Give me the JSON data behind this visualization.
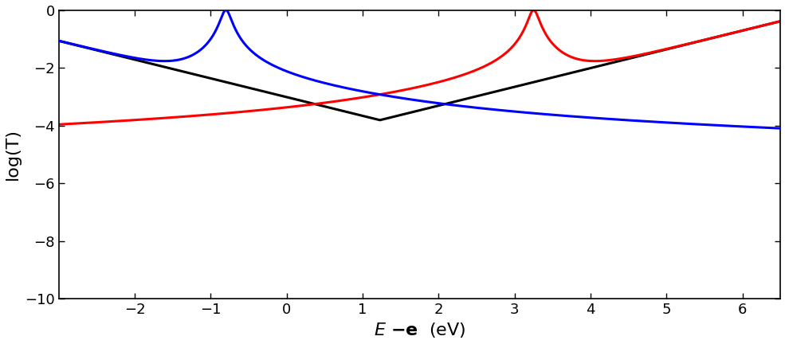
{
  "xlabel": "E -e  (eV)",
  "ylabel": "log(T)",
  "xlim": [
    -3.0,
    6.5
  ],
  "ylim": [
    -10,
    0
  ],
  "yticks": [
    0,
    -2,
    -4,
    -6,
    -8,
    -10
  ],
  "xticks": [
    -2,
    -1,
    0,
    1,
    2,
    3,
    4,
    5,
    6
  ],
  "blue_color": "#0000FF",
  "red_color": "#FF0000",
  "black_color": "#000000",
  "linewidth": 2.2,
  "background_color": "#FFFFFF",
  "blue_resonance": -0.8,
  "red_resonance": 3.25,
  "gamma_hw": 0.065,
  "blue_slope": -0.65,
  "blue_bg_at_resonance": -2.5,
  "red_slope": 0.65,
  "red_bg_at_resonance": -2.5,
  "xlabel_fontsize": 16,
  "ylabel_fontsize": 16,
  "tick_fontsize": 13
}
